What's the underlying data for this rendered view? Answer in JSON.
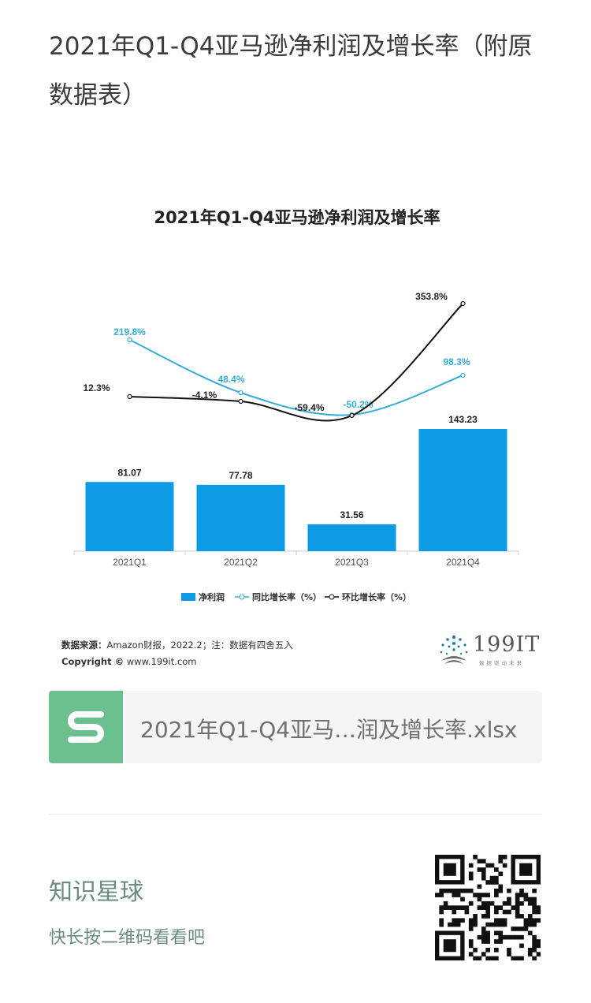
{
  "post": {
    "title": "2021年Q1-Q4亚马逊净利润及增长率（附原数据表）"
  },
  "chart_data": {
    "type": "bar",
    "title": "2021年Q1-Q4亚马逊净利润及增长率",
    "categories": [
      "2021Q1",
      "2021Q2",
      "2021Q3",
      "2021Q4"
    ],
    "series": [
      {
        "name": "净利润",
        "kind": "bar",
        "color": "#0e9be6",
        "values": [
          81.07,
          77.78,
          31.56,
          143.23
        ],
        "labels": [
          "81.07",
          "77.78",
          "31.56",
          "143.23"
        ]
      },
      {
        "name": "同比增长率（%）",
        "kind": "line",
        "color": "#33aed8",
        "values": [
          219.8,
          48.4,
          -50.2,
          98.3
        ],
        "labels": [
          "219.8%",
          "48.4%",
          "-50.2%",
          "98.3%"
        ]
      },
      {
        "name": "环比增长率（%）",
        "kind": "line",
        "color": "#111111",
        "values": [
          12.3,
          -4.1,
          -59.4,
          353.8
        ],
        "labels": [
          "12.3%",
          "-4.1%",
          "-59.4%",
          "353.8%"
        ]
      }
    ],
    "legend_position": "bottom",
    "grid": false
  },
  "source": {
    "label": "数据来源：",
    "text": "Amazon财报，2022.2；注：数据有四舍五入",
    "copyright_label": "Copyright ©",
    "copyright_text": " www.199it.com"
  },
  "brand": {
    "number": "199IT",
    "tagline": "数据驱动未来"
  },
  "file": {
    "icon": "spreadsheet-s-icon",
    "name": "2021年Q1-Q4亚马…润及增长率.xlsx"
  },
  "planet": {
    "title": "知识星球",
    "subtitle": "快长按二维码看看吧"
  },
  "colors": {
    "bar": "#0e9be6",
    "yoy": "#33aed8",
    "qoq": "#111111",
    "file_icon": "#6cc08e",
    "planet_text": "#6a8c7c"
  }
}
